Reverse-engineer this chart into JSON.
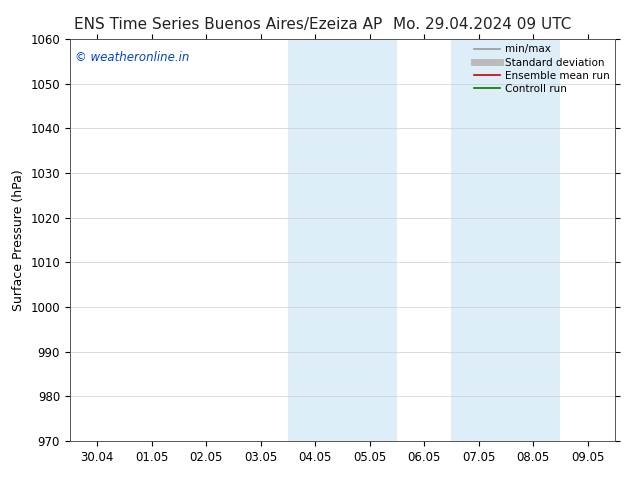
{
  "title_left": "ENS Time Series Buenos Aires/Ezeiza AP",
  "title_right": "Mo. 29.04.2024 09 UTC",
  "ylabel": "Surface Pressure (hPa)",
  "ylim": [
    970,
    1060
  ],
  "yticks": [
    970,
    980,
    990,
    1000,
    1010,
    1020,
    1030,
    1040,
    1050,
    1060
  ],
  "xtick_labels": [
    "30.04",
    "01.05",
    "02.05",
    "03.05",
    "04.05",
    "05.05",
    "06.05",
    "07.05",
    "08.05",
    "09.05"
  ],
  "xtick_positions": [
    0,
    1,
    2,
    3,
    4,
    5,
    6,
    7,
    8,
    9
  ],
  "xlim": [
    -0.5,
    9.5
  ],
  "shaded_bands": [
    {
      "xmin": 3.5,
      "xmax": 4.5
    },
    {
      "xmin": 4.5,
      "xmax": 5.5
    },
    {
      "xmin": 6.5,
      "xmax": 7.5
    },
    {
      "xmin": 7.5,
      "xmax": 8.5
    }
  ],
  "shaded_color": "#ddeef8",
  "watermark_text": "© weatheronline.in",
  "watermark_color": "#0044cc",
  "legend_items": [
    {
      "label": "min/max",
      "color": "#999999",
      "lw": 1.2
    },
    {
      "label": "Standard deviation",
      "color": "#bbbbbb",
      "lw": 5
    },
    {
      "label": "Ensemble mean run",
      "color": "#cc0000",
      "lw": 1.2
    },
    {
      "label": "Controll run",
      "color": "#007700",
      "lw": 1.2
    }
  ],
  "bg_color": "#ffffff",
  "title_fontsize": 11,
  "axis_label_fontsize": 9,
  "tick_fontsize": 8.5,
  "legend_fontsize": 7.5
}
